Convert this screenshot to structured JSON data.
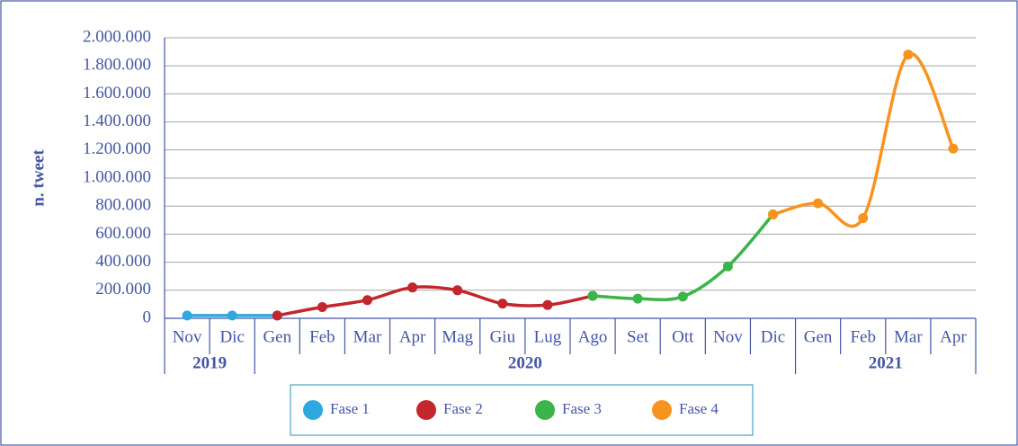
{
  "chart_data": {
    "type": "line",
    "y_label": "n. tweet",
    "groups": [
      {
        "label": "2019",
        "categories": [
          "Nov",
          "Dic"
        ]
      },
      {
        "label": "2020",
        "categories": [
          "Gen",
          "Feb",
          "Mar",
          "Apr",
          "Mag",
          "Giu",
          "Lug",
          "Ago",
          "Set",
          "Ott",
          "Nov",
          "Dic"
        ]
      },
      {
        "label": "2021",
        "categories": [
          "Gen",
          "Feb",
          "Mar",
          "Apr"
        ]
      }
    ],
    "series": [
      {
        "name": "Fase 1",
        "color": "#2ea9df",
        "values": [
          20000,
          20000,
          20000,
          null,
          null,
          null,
          null,
          null,
          null,
          null,
          null,
          null,
          null,
          null,
          null,
          null,
          null,
          null
        ]
      },
      {
        "name": "Fase 2",
        "color": "#c1272d",
        "values": [
          null,
          null,
          20000,
          80000,
          130000,
          220000,
          200000,
          105000,
          95000,
          160000,
          null,
          null,
          null,
          null,
          null,
          null,
          null,
          null
        ]
      },
      {
        "name": "Fase 3",
        "color": "#3bb44a",
        "values": [
          null,
          null,
          null,
          null,
          null,
          null,
          null,
          null,
          null,
          160000,
          140000,
          155000,
          370000,
          740000,
          null,
          null,
          null,
          null
        ]
      },
      {
        "name": "Fase 4",
        "color": "#f7931e",
        "values": [
          null,
          null,
          null,
          null,
          null,
          null,
          null,
          null,
          null,
          null,
          null,
          null,
          null,
          740000,
          820000,
          715000,
          1880000,
          1210000
        ]
      }
    ],
    "ylim": [
      0,
      2000000
    ],
    "yticks": [
      0,
      {
        "value": 200000,
        "label": "200.000"
      },
      {
        "value": 400000,
        "label": "400.000"
      },
      {
        "value": 600000,
        "label": "600.000"
      },
      {
        "value": 800000,
        "label": "800.000"
      },
      {
        "value": 1000000,
        "label": "1.000.000"
      },
      {
        "value": 1200000,
        "label": "1.200.000"
      },
      {
        "value": 1400000,
        "label": "1.400.000"
      },
      {
        "value": 1600000,
        "label": "1.600.000"
      },
      {
        "value": 1800000,
        "label": "1.800.000"
      },
      {
        "value": 2000000,
        "label": "2.000.000"
      }
    ],
    "grid": true
  }
}
